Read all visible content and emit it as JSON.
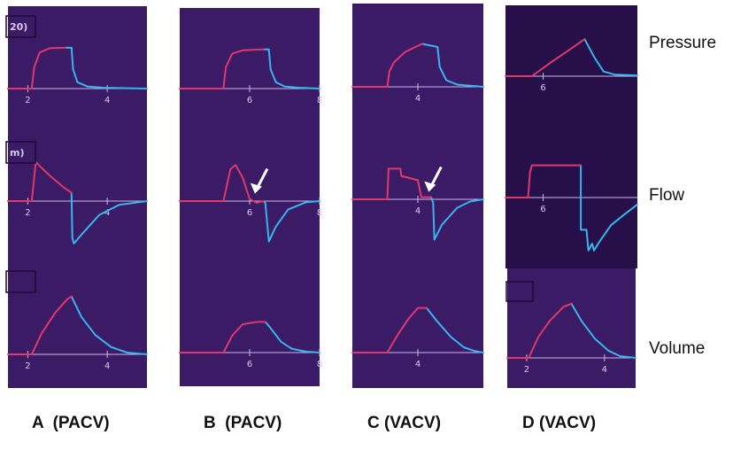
{
  "chart_data": {
    "type": "line",
    "title": "",
    "xlabel": "",
    "rows": [
      "Pressure",
      "Flow",
      "Volume"
    ],
    "colors": {
      "panel_bg": "#3b1b66",
      "panel_bg_dark": "#27104a",
      "inspiration": "#e0386a",
      "expiration": "#36b6ec",
      "axis": "#c9b8e8",
      "tick_label": "#d8c8f0",
      "arrow": "#ffffff"
    },
    "panels": [
      {
        "caption": "A  (PACV)",
        "header_labels": [
          "20)",
          "m)"
        ],
        "ticks": {
          "pressure": [],
          "flow": [
            {
              "x": 2,
              "label": "2"
            },
            {
              "x": 4,
              "label": "4"
            }
          ],
          "volume": [
            {
              "x": 2,
              "label": "2"
            },
            {
              "x": 4,
              "label": "4"
            }
          ],
          "pressure_axis": [
            {
              "x": 2,
              "label": "2"
            },
            {
              "x": 4,
              "label": "4"
            }
          ]
        },
        "x_range": [
          1.5,
          5.0
        ],
        "arrow_at": null,
        "series": {
          "pressure": {
            "insp": [
              [
                1.5,
                0
              ],
              [
                2.1,
                0
              ],
              [
                2.16,
                0.5
              ],
              [
                2.3,
                0.85
              ],
              [
                2.55,
                0.95
              ],
              [
                2.95,
                0.96
              ]
            ],
            "exp": [
              [
                2.95,
                0.96
              ],
              [
                3.1,
                0.96
              ],
              [
                3.14,
                0.45
              ],
              [
                3.25,
                0.15
              ],
              [
                3.5,
                0.05
              ],
              [
                3.9,
                0.02
              ],
              [
                5.0,
                0
              ]
            ]
          },
          "flow": {
            "insp": [
              [
                1.5,
                0
              ],
              [
                2.1,
                0
              ],
              [
                2.2,
                0.85
              ],
              [
                2.35,
                0.72
              ],
              [
                2.6,
                0.52
              ],
              [
                2.9,
                0.3
              ],
              [
                3.1,
                0.18
              ]
            ],
            "exp": [
              [
                3.1,
                0.18
              ],
              [
                3.12,
                -0.8
              ],
              [
                3.16,
                -0.92
              ],
              [
                3.4,
                -0.68
              ],
              [
                3.8,
                -0.3
              ],
              [
                4.3,
                -0.08
              ],
              [
                5.0,
                0
              ]
            ]
          },
          "volume": {
            "insp": [
              [
                1.5,
                0
              ],
              [
                2.1,
                0
              ],
              [
                2.35,
                0.35
              ],
              [
                2.7,
                0.7
              ],
              [
                3.0,
                0.92
              ],
              [
                3.1,
                0.96
              ]
            ],
            "exp": [
              [
                3.1,
                0.96
              ],
              [
                3.35,
                0.62
              ],
              [
                3.7,
                0.32
              ],
              [
                4.1,
                0.12
              ],
              [
                4.5,
                0.03
              ],
              [
                5.0,
                0
              ]
            ]
          }
        }
      },
      {
        "caption": "B  (PACV)",
        "header_labels": [],
        "ticks": {
          "pressure_axis": [
            {
              "x": 6,
              "label": "6"
            },
            {
              "x": 8,
              "label": "8"
            }
          ],
          "flow": [
            {
              "x": 6,
              "label": "6"
            },
            {
              "x": 8,
              "label": "8"
            }
          ],
          "volume": [
            {
              "x": 6,
              "label": "6"
            },
            {
              "x": 8,
              "label": "8"
            }
          ]
        },
        "x_range": [
          4.0,
          8.0
        ],
        "arrow_at": {
          "row": "flow",
          "x": 6.15,
          "y": 0.05
        },
        "series": {
          "pressure": {
            "insp": [
              [
                4.0,
                0
              ],
              [
                5.25,
                0
              ],
              [
                5.32,
                0.5
              ],
              [
                5.5,
                0.82
              ],
              [
                5.8,
                0.9
              ],
              [
                6.4,
                0.92
              ]
            ],
            "exp": [
              [
                6.4,
                0.92
              ],
              [
                6.55,
                0.92
              ],
              [
                6.6,
                0.45
              ],
              [
                6.75,
                0.15
              ],
              [
                7.0,
                0.05
              ],
              [
                7.4,
                0.02
              ],
              [
                8.0,
                0
              ]
            ]
          },
          "flow": {
            "insp": [
              [
                4.0,
                0
              ],
              [
                5.25,
                0
              ],
              [
                5.45,
                0.75
              ],
              [
                5.6,
                0.85
              ],
              [
                5.8,
                0.55
              ],
              [
                6.0,
                0.05
              ],
              [
                6.2,
                -0.04
              ],
              [
                6.4,
                0
              ]
            ],
            "exp": [
              [
                6.4,
                0
              ],
              [
                6.45,
                -0.05
              ],
              [
                6.55,
                -0.95
              ],
              [
                6.75,
                -0.6
              ],
              [
                7.1,
                -0.2
              ],
              [
                7.6,
                -0.03
              ],
              [
                8.0,
                0
              ]
            ]
          },
          "volume": {
            "insp": [
              [
                4.0,
                0
              ],
              [
                5.25,
                0
              ],
              [
                5.5,
                0.35
              ],
              [
                5.8,
                0.58
              ],
              [
                6.2,
                0.63
              ],
              [
                6.45,
                0.63
              ]
            ],
            "exp": [
              [
                6.45,
                0.63
              ],
              [
                6.6,
                0.5
              ],
              [
                6.9,
                0.22
              ],
              [
                7.2,
                0.08
              ],
              [
                7.6,
                0.02
              ],
              [
                8.0,
                0
              ]
            ]
          }
        }
      },
      {
        "caption": "C (VACV)",
        "header_labels": [],
        "ticks": {
          "pressure_axis": [
            {
              "x": 4,
              "label": "4"
            }
          ],
          "flow": [
            {
              "x": 4,
              "label": "4"
            }
          ],
          "volume": [
            {
              "x": 4,
              "label": "4"
            }
          ]
        },
        "x_range": [
          2.5,
          5.5
        ],
        "arrow_at": {
          "row": "flow",
          "x": 4.25,
          "y": 0.05
        },
        "series": {
          "pressure": {
            "insp": [
              [
                2.5,
                0
              ],
              [
                3.3,
                0
              ],
              [
                3.35,
                0.35
              ],
              [
                3.45,
                0.55
              ],
              [
                3.7,
                0.78
              ],
              [
                3.9,
                0.88
              ],
              [
                4.1,
                0.97
              ]
            ],
            "exp": [
              [
                4.1,
                0.97
              ],
              [
                4.35,
                0.92
              ],
              [
                4.45,
                0.9
              ],
              [
                4.5,
                0.45
              ],
              [
                4.65,
                0.15
              ],
              [
                4.9,
                0.05
              ],
              [
                5.5,
                0
              ]
            ]
          },
          "flow": {
            "insp": [
              [
                2.5,
                0
              ],
              [
                3.3,
                0
              ],
              [
                3.33,
                0.72
              ],
              [
                3.6,
                0.72
              ],
              [
                3.62,
                0.55
              ],
              [
                4.0,
                0.45
              ],
              [
                4.08,
                0.05
              ],
              [
                4.3,
                0.05
              ]
            ],
            "exp": [
              [
                4.3,
                0.05
              ],
              [
                4.35,
                -0.08
              ],
              [
                4.38,
                -0.95
              ],
              [
                4.55,
                -0.6
              ],
              [
                4.9,
                -0.2
              ],
              [
                5.2,
                -0.05
              ],
              [
                5.5,
                0
              ]
            ]
          },
          "volume": {
            "insp": [
              [
                2.5,
                0
              ],
              [
                3.3,
                0
              ],
              [
                3.55,
                0.35
              ],
              [
                3.8,
                0.65
              ],
              [
                4.0,
                0.84
              ],
              [
                4.2,
                0.84
              ]
            ],
            "exp": [
              [
                4.2,
                0.84
              ],
              [
                4.45,
                0.58
              ],
              [
                4.75,
                0.3
              ],
              [
                5.05,
                0.1
              ],
              [
                5.3,
                0.03
              ],
              [
                5.5,
                0
              ]
            ]
          }
        }
      },
      {
        "caption": "D (VACV)",
        "header_labels": [],
        "ticks": {
          "pressure_axis": [
            {
              "x": 6,
              "label": "6"
            }
          ],
          "flow": [
            {
              "x": 6,
              "label": "6"
            }
          ],
          "volume": [
            {
              "x": 2,
              "label": "2"
            },
            {
              "x": 4,
              "label": "4"
            }
          ]
        },
        "x_range": [
          5.0,
          8.5
        ],
        "volume_x_range": [
          1.5,
          4.8
        ],
        "arrow_at": null,
        "series": {
          "pressure": {
            "insp": [
              [
                5.0,
                0
              ],
              [
                5.7,
                0
              ],
              [
                6.2,
                0.35
              ],
              [
                6.7,
                0.68
              ],
              [
                7.1,
                0.95
              ]
            ],
            "exp": [
              [
                7.1,
                0.95
              ],
              [
                7.35,
                0.5
              ],
              [
                7.6,
                0.12
              ],
              [
                7.9,
                0.04
              ],
              [
                8.5,
                0.02
              ]
            ]
          },
          "flow": {
            "insp": [
              [
                5.0,
                0
              ],
              [
                5.6,
                0
              ],
              [
                5.65,
                0.55
              ],
              [
                5.7,
                0.7
              ],
              [
                7.0,
                0.7
              ]
            ],
            "exp": [
              [
                7.0,
                0.7
              ],
              [
                7.0,
                -0.7
              ],
              [
                7.15,
                -0.7
              ],
              [
                7.2,
                -1.15
              ],
              [
                7.3,
                -1.0
              ],
              [
                7.35,
                -1.15
              ],
              [
                7.5,
                -0.95
              ],
              [
                7.8,
                -0.6
              ],
              [
                8.1,
                -0.4
              ],
              [
                8.5,
                -0.15
              ]
            ]
          },
          "volume": {
            "insp": [
              [
                1.5,
                0
              ],
              [
                2.05,
                0
              ],
              [
                2.3,
                0.35
              ],
              [
                2.6,
                0.62
              ],
              [
                2.95,
                0.85
              ],
              [
                3.15,
                0.9
              ]
            ],
            "exp": [
              [
                3.15,
                0.9
              ],
              [
                3.4,
                0.62
              ],
              [
                3.75,
                0.32
              ],
              [
                4.1,
                0.12
              ],
              [
                4.4,
                0.03
              ],
              [
                4.8,
                0
              ]
            ]
          }
        }
      }
    ]
  },
  "labels": {
    "pressure": "Pressure",
    "flow": "Flow",
    "volume": "Volume"
  }
}
